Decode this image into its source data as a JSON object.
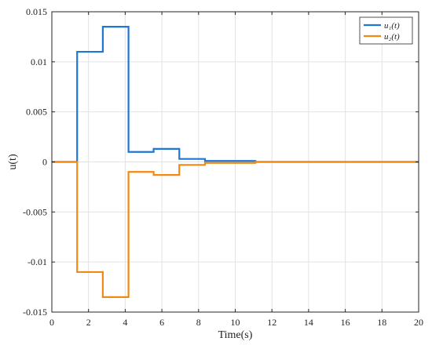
{
  "chart_data": {
    "type": "line",
    "title": "",
    "xlabel": "Time(s)",
    "ylabel": "u(t)",
    "xlim": [
      0,
      20
    ],
    "ylim": [
      -0.015,
      0.015
    ],
    "xticks": [
      0,
      2,
      4,
      6,
      8,
      10,
      12,
      14,
      16,
      18,
      20
    ],
    "xtick_labels": [
      "0",
      "2",
      "4",
      "6",
      "8",
      "10",
      "12",
      "14",
      "16",
      "18",
      "20"
    ],
    "yticks": [
      0.015,
      0.01,
      0.005,
      0,
      -0.005,
      -0.01,
      -0.015
    ],
    "ytick_labels": [
      "0.015",
      "0.01",
      "0.005",
      "0",
      "-0.005",
      "-0.01",
      "-0.015"
    ],
    "grid": true,
    "legend_position": "top-right",
    "step": true,
    "series": [
      {
        "name": "u₁(t)",
        "color": "#1f77d4",
        "x": [
          0,
          1.38,
          2.78,
          4.18,
          5.55,
          6.95,
          8.35,
          11.1,
          20
        ],
        "y": [
          0,
          0.011,
          0.0135,
          0.001,
          0.0013,
          0.0003,
          0.0001,
          0,
          0
        ]
      },
      {
        "name": "u₂(t)",
        "color": "#f08a12",
        "x": [
          0,
          1.38,
          2.78,
          4.18,
          5.55,
          6.95,
          8.35,
          11.1,
          20
        ],
        "y": [
          0,
          -0.011,
          -0.0135,
          -0.001,
          -0.0013,
          -0.0003,
          -0.0001,
          0,
          0
        ]
      }
    ]
  }
}
